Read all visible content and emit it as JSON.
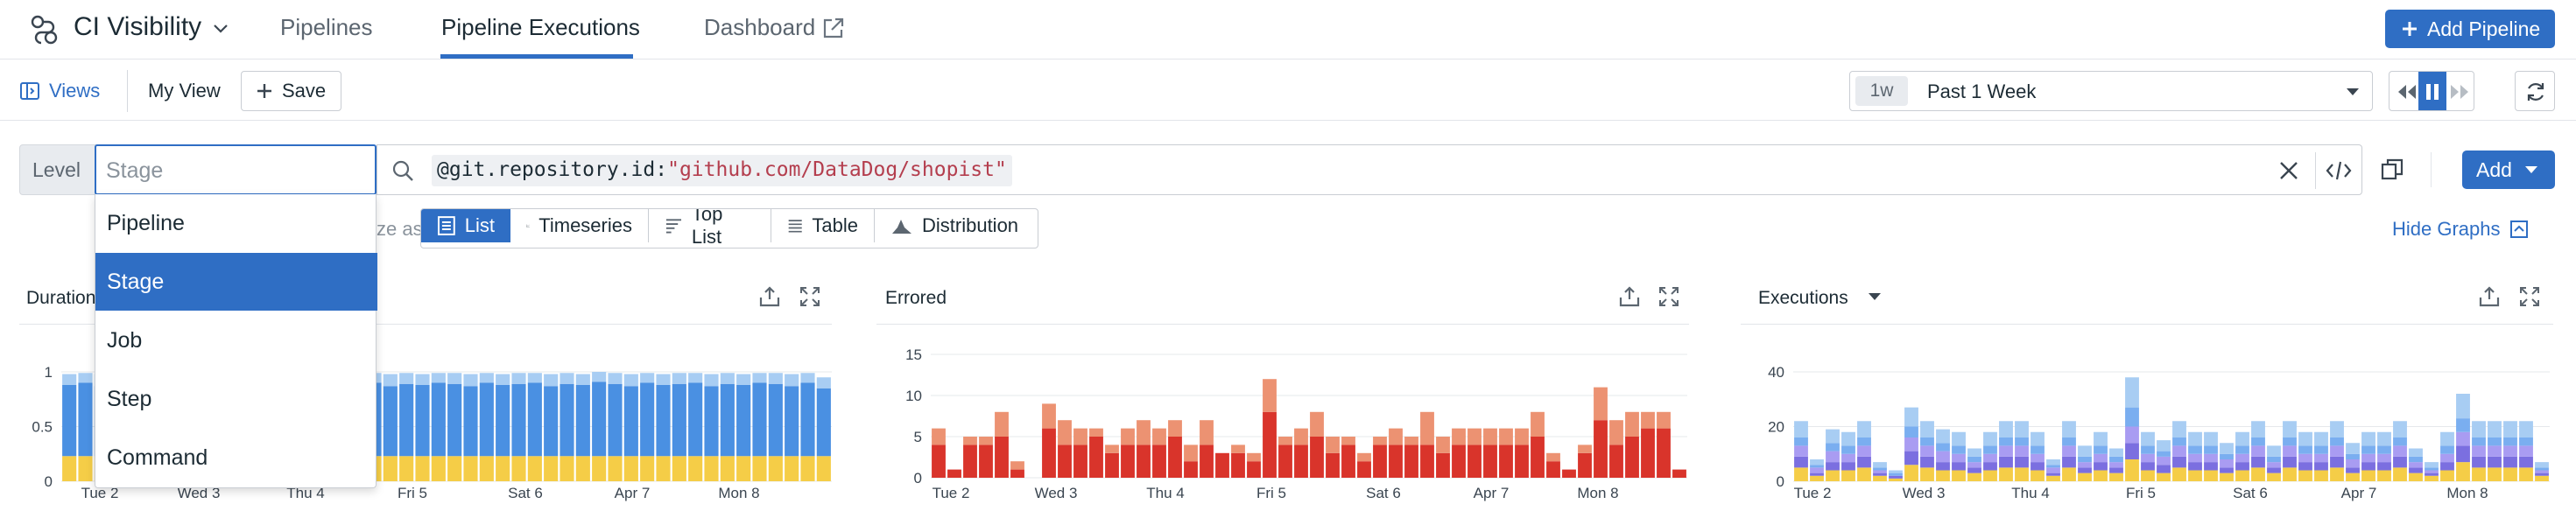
{
  "app": {
    "title": "CI Visibility"
  },
  "nav": {
    "tabs": [
      "Pipelines",
      "Pipeline Executions",
      "Dashboard"
    ],
    "add_pipeline_label": "Add Pipeline"
  },
  "toolbar": {
    "views_label": "Views",
    "view_name": "My View",
    "save_label": "Save",
    "time_badge": "1w",
    "time_range": "Past 1 Week"
  },
  "search": {
    "level_label": "Level",
    "level_placeholder": "Stage",
    "query_attr": "@git.repository.id",
    "query_colon": ":",
    "query_value": "\"github.com/DataDog/shopist\"",
    "add_label": "Add"
  },
  "dropdown": {
    "options": [
      "Pipeline",
      "Stage",
      "Job",
      "Step",
      "Command"
    ],
    "selected": "Stage"
  },
  "visualize": {
    "prefix": "ze as",
    "tabs": [
      "List",
      "Timeseries",
      "Top List",
      "Table",
      "Distribution"
    ],
    "active": "List",
    "hide_graphs": "Hide Graphs"
  },
  "colors": {
    "accent": "#2f6ec4",
    "duration_blue": "#4a90e2",
    "duration_light": "#a8cdf3",
    "duration_yellow": "#f5cd47",
    "errored_red": "#d9342b",
    "errored_salmon": "#ec9272"
  },
  "chart_data": [
    {
      "type": "bar",
      "title": "Duration",
      "x_tick_labels": [
        "Tue 2",
        "Wed 3",
        "Thu 4",
        "Fri 5",
        "Sat 6",
        "Apr 7",
        "Mon 8"
      ],
      "y_tick_labels": [
        "1",
        "0.5",
        "0"
      ],
      "ylim": [
        0,
        1
      ],
      "series": [
        {
          "values": [
            0.23,
            0.23,
            0.23,
            0.23,
            0.23,
            0.23,
            0.23,
            0.23,
            0.23,
            0.23,
            0.23,
            0.23,
            0.23,
            0.23,
            0.23,
            0.23,
            0.23,
            0.23,
            0.23,
            0.23,
            0.23,
            0.23,
            0.23,
            0.23,
            0.23,
            0.23,
            0.23,
            0.23,
            0.23,
            0.23,
            0.23,
            0.23,
            0.23,
            0.23,
            0.23,
            0.23,
            0.23,
            0.23,
            0.23,
            0.23,
            0.23,
            0.23,
            0.23,
            0.23,
            0.23,
            0.23,
            0.23,
            0.23
          ]
        },
        {
          "values": [
            0.65,
            0.67,
            0.64,
            0.66,
            0.68,
            0.65,
            0.67,
            0.64,
            0.66,
            0.67,
            0.65,
            0.66,
            0.63,
            0.67,
            0.66,
            0.64,
            0.68,
            0.65,
            0.66,
            0.67,
            0.64,
            0.66,
            0.65,
            0.67,
            0.66,
            0.64,
            0.67,
            0.65,
            0.66,
            0.67,
            0.64,
            0.66,
            0.65,
            0.68,
            0.66,
            0.64,
            0.67,
            0.65,
            0.66,
            0.67,
            0.64,
            0.66,
            0.65,
            0.67,
            0.66,
            0.64,
            0.67,
            0.62
          ]
        },
        {
          "values": [
            0.1,
            0.09,
            0.11,
            0.1,
            0.09,
            0.1,
            0.09,
            0.11,
            0.1,
            0.09,
            0.1,
            0.1,
            0.11,
            0.09,
            0.1,
            0.11,
            0.09,
            0.1,
            0.1,
            0.09,
            0.11,
            0.1,
            0.1,
            0.09,
            0.1,
            0.11,
            0.09,
            0.1,
            0.1,
            0.09,
            0.11,
            0.1,
            0.1,
            0.09,
            0.1,
            0.11,
            0.09,
            0.1,
            0.1,
            0.09,
            0.11,
            0.1,
            0.1,
            0.09,
            0.1,
            0.11,
            0.09,
            0.1
          ]
        }
      ]
    },
    {
      "type": "bar",
      "title": "Errored",
      "x_tick_labels": [
        "Tue 2",
        "Wed 3",
        "Thu 4",
        "Fri 5",
        "Sat 6",
        "Apr 7",
        "Mon 8"
      ],
      "y_tick_labels": [
        "15",
        "10",
        "5",
        "0"
      ],
      "ylim": [
        0,
        15
      ],
      "series": [
        {
          "values": [
            4,
            1,
            4,
            4,
            5,
            1,
            0,
            6,
            4,
            4,
            5,
            3,
            4,
            4,
            4,
            5,
            2,
            4,
            3,
            3,
            2,
            8,
            4,
            4,
            5,
            3,
            4,
            2,
            4,
            4,
            4,
            4,
            3,
            4,
            4,
            4,
            4,
            4,
            5,
            2,
            1,
            3,
            7,
            4,
            5,
            6,
            6,
            1
          ]
        },
        {
          "values": [
            2,
            0,
            1,
            1,
            3,
            1,
            0,
            3,
            3,
            2,
            1,
            1,
            2,
            3,
            2,
            2,
            2,
            3,
            0,
            1,
            1,
            4,
            1,
            2,
            3,
            2,
            1,
            1,
            1,
            2,
            1,
            4,
            2,
            2,
            2,
            2,
            2,
            2,
            3,
            1,
            0,
            1,
            4,
            3,
            3,
            2,
            2,
            0
          ]
        }
      ]
    },
    {
      "type": "bar",
      "title": "Executions",
      "x_tick_labels": [
        "Tue 2",
        "Wed 3",
        "Thu 4",
        "Fri 5",
        "Sat 6",
        "Apr 7",
        "Mon 8"
      ],
      "y_tick_labels": [
        "40",
        "20",
        "0"
      ],
      "ylim": [
        0,
        40
      ],
      "series": [
        {
          "values": [
            5,
            2,
            4,
            4,
            5,
            2,
            1,
            6,
            5,
            4,
            4,
            3,
            4,
            5,
            5,
            4,
            2,
            5,
            3,
            4,
            3,
            8,
            4,
            3,
            5,
            4,
            4,
            3,
            4,
            5,
            3,
            5,
            4,
            4,
            5,
            3,
            4,
            4,
            5,
            3,
            2,
            4,
            7,
            5,
            5,
            5,
            5,
            2
          ]
        },
        {
          "values": [
            4,
            1,
            3,
            3,
            4,
            1,
            1,
            5,
            4,
            3,
            3,
            2,
            3,
            4,
            4,
            3,
            1,
            4,
            2,
            3,
            2,
            6,
            3,
            3,
            4,
            3,
            3,
            2,
            3,
            4,
            2,
            4,
            3,
            3,
            4,
            2,
            3,
            3,
            4,
            2,
            1,
            3,
            6,
            4,
            4,
            4,
            4,
            1
          ]
        },
        {
          "values": [
            4,
            2,
            4,
            3,
            4,
            1,
            0,
            5,
            4,
            4,
            3,
            2,
            3,
            4,
            4,
            3,
            2,
            4,
            2,
            3,
            2,
            6,
            3,
            3,
            4,
            3,
            3,
            3,
            3,
            4,
            2,
            4,
            3,
            3,
            4,
            3,
            3,
            3,
            4,
            2,
            1,
            3,
            5,
            4,
            4,
            4,
            4,
            1
          ]
        },
        {
          "values": [
            3,
            1,
            3,
            3,
            3,
            1,
            1,
            4,
            3,
            3,
            3,
            2,
            3,
            3,
            3,
            3,
            1,
            3,
            2,
            3,
            2,
            7,
            3,
            2,
            3,
            3,
            3,
            2,
            3,
            3,
            2,
            3,
            3,
            3,
            3,
            2,
            3,
            3,
            3,
            2,
            1,
            3,
            5,
            3,
            3,
            3,
            3,
            1
          ]
        },
        {
          "values": [
            6,
            2,
            5,
            5,
            6,
            2,
            1,
            7,
            6,
            5,
            5,
            3,
            5,
            6,
            6,
            5,
            2,
            6,
            4,
            5,
            3,
            11,
            5,
            4,
            6,
            5,
            5,
            4,
            5,
            6,
            4,
            6,
            5,
            5,
            6,
            4,
            5,
            5,
            6,
            3,
            2,
            5,
            9,
            6,
            6,
            6,
            6,
            2
          ]
        }
      ]
    }
  ]
}
